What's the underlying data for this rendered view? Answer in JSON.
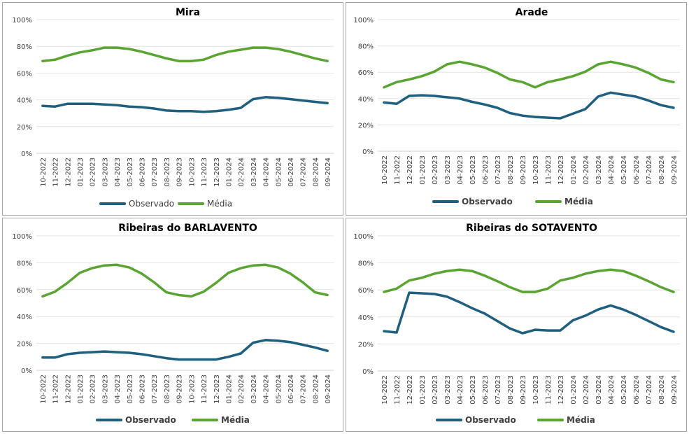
{
  "chart_data": [
    {
      "type": "line",
      "title": "Mira",
      "x": [
        "10-2022",
        "11-2022",
        "12-2022",
        "01-2023",
        "02-2023",
        "03-2023",
        "04-2023",
        "05-2023",
        "06-2023",
        "07-2023",
        "08-2023",
        "09-2023",
        "10-2023",
        "11-2023",
        "12-2023",
        "01-2024",
        "02-2024",
        "03-2024",
        "04-2024",
        "05-2024",
        "06-2024",
        "07-2024",
        "08-2024",
        "09-2024"
      ],
      "yticks": [
        "0%",
        "20%",
        "40%",
        "60%",
        "80%",
        "100%"
      ],
      "ylim": [
        0,
        100
      ],
      "legend_position": "bottom",
      "series": [
        {
          "name": "Observado",
          "color": "#1f5f7f",
          "values": [
            35.5,
            35,
            37,
            37,
            37,
            36.5,
            36,
            35,
            34.5,
            33.5,
            32,
            31.5,
            31.5,
            31,
            31.5,
            32.5,
            34,
            40.5,
            42,
            41.5,
            40.5,
            39.5,
            38.5,
            37.5
          ]
        },
        {
          "name": "Média",
          "color": "#5aa532",
          "values": [
            69,
            70,
            73,
            75.5,
            77,
            79,
            79,
            78,
            76,
            73.5,
            71,
            69,
            69,
            70,
            73.5,
            76,
            77.5,
            79,
            79,
            78,
            76,
            73.5,
            71,
            69
          ]
        }
      ]
    },
    {
      "type": "line",
      "title": "Arade",
      "x": [
        "10-2022",
        "11-2022",
        "12-2022",
        "01-2023",
        "02-2023",
        "03-2023",
        "04-2023",
        "05-2023",
        "06-2023",
        "07-2023",
        "08-2023",
        "09-2023",
        "10-2023",
        "11-2023",
        "12-2023",
        "01-2024",
        "02-2024",
        "03-2024",
        "04-2024",
        "05-2024",
        "06-2024",
        "07-2024",
        "08-2024",
        "09-2024"
      ],
      "yticks": [
        "0%",
        "20%",
        "40%",
        "60%",
        "80%",
        "100%"
      ],
      "ylim": [
        0,
        100
      ],
      "legend_position": "bottom",
      "series": [
        {
          "name": "Observado",
          "color": "#1f5f7f",
          "values": [
            37,
            36,
            42,
            42.5,
            42,
            41,
            40,
            37.5,
            35.5,
            33,
            29,
            27,
            26,
            25.5,
            25,
            28.5,
            32,
            41.5,
            44.5,
            43,
            41.5,
            38.5,
            35,
            33
          ]
        },
        {
          "name": "Média",
          "color": "#5aa532",
          "values": [
            48.5,
            52.5,
            54.5,
            57,
            60.5,
            66,
            68,
            66,
            63.5,
            59.5,
            54.5,
            52.5,
            48.5,
            52.5,
            54.5,
            57,
            60.5,
            66,
            68,
            66,
            63.5,
            59.5,
            54.5,
            52.5
          ]
        }
      ]
    },
    {
      "type": "line",
      "title": "Ribeiras do BARLAVENTO",
      "x": [
        "10-2022",
        "11-2022",
        "12-2022",
        "01-2023",
        "02-2023",
        "03-2023",
        "04-2023",
        "05-2023",
        "06-2023",
        "07-2023",
        "08-2023",
        "09-2023",
        "10-2023",
        "11-2023",
        "12-2023",
        "01-2024",
        "02-2024",
        "03-2024",
        "04-2024",
        "05-2024",
        "06-2024",
        "07-2024",
        "08-2024",
        "09-2024"
      ],
      "yticks": [
        "0%",
        "20%",
        "40%",
        "60%",
        "80%",
        "100%"
      ],
      "ylim": [
        0,
        100
      ],
      "legend_position": "bottom",
      "series": [
        {
          "name": "Observado",
          "color": "#1f5f7f",
          "values": [
            9.5,
            9.5,
            12,
            13,
            13.5,
            14,
            13.5,
            13,
            12,
            10.5,
            9,
            8,
            8,
            8,
            8,
            10,
            12.5,
            20.5,
            22.5,
            22,
            21,
            19,
            17,
            14.5
          ]
        },
        {
          "name": "Média",
          "color": "#5aa532",
          "values": [
            55,
            58.5,
            65,
            72.5,
            76,
            78,
            78.5,
            76.5,
            72,
            65.5,
            58,
            56,
            55,
            58.5,
            65,
            72.5,
            76,
            78,
            78.5,
            76.5,
            72,
            65.5,
            58,
            56
          ]
        }
      ]
    },
    {
      "type": "line",
      "title": "Ribeiras do SOTAVENTO",
      "x": [
        "10-2022",
        "11-2022",
        "12-2022",
        "01-2023",
        "02-2023",
        "03-2023",
        "04-2023",
        "05-2023",
        "06-2023",
        "07-2023",
        "08-2023",
        "09-2023",
        "10-2023",
        "11-2023",
        "12-2023",
        "01-2024",
        "02-2024",
        "03-2024",
        "04-2024",
        "05-2024",
        "06-2024",
        "07-2024",
        "08-2024",
        "09-2024"
      ],
      "yticks": [
        "0%",
        "20%",
        "40%",
        "60%",
        "80%",
        "100%"
      ],
      "ylim": [
        0,
        100
      ],
      "legend_position": "bottom",
      "series": [
        {
          "name": "Observado",
          "color": "#1f5f7f",
          "values": [
            29.5,
            28.5,
            58,
            57.5,
            57,
            55,
            51,
            46.5,
            42.5,
            37,
            31.5,
            28,
            30.5,
            30,
            30,
            37.5,
            41,
            45.5,
            48.5,
            45.5,
            41.5,
            37,
            32.5,
            29
          ]
        },
        {
          "name": "Média",
          "color": "#5aa532",
          "values": [
            58.5,
            61,
            67,
            69,
            72,
            74,
            75,
            74,
            70.5,
            66.5,
            62,
            58.5,
            58.5,
            61,
            67,
            69,
            72,
            74,
            75,
            74,
            70.5,
            66.5,
            62,
            58.5
          ]
        }
      ]
    }
  ]
}
